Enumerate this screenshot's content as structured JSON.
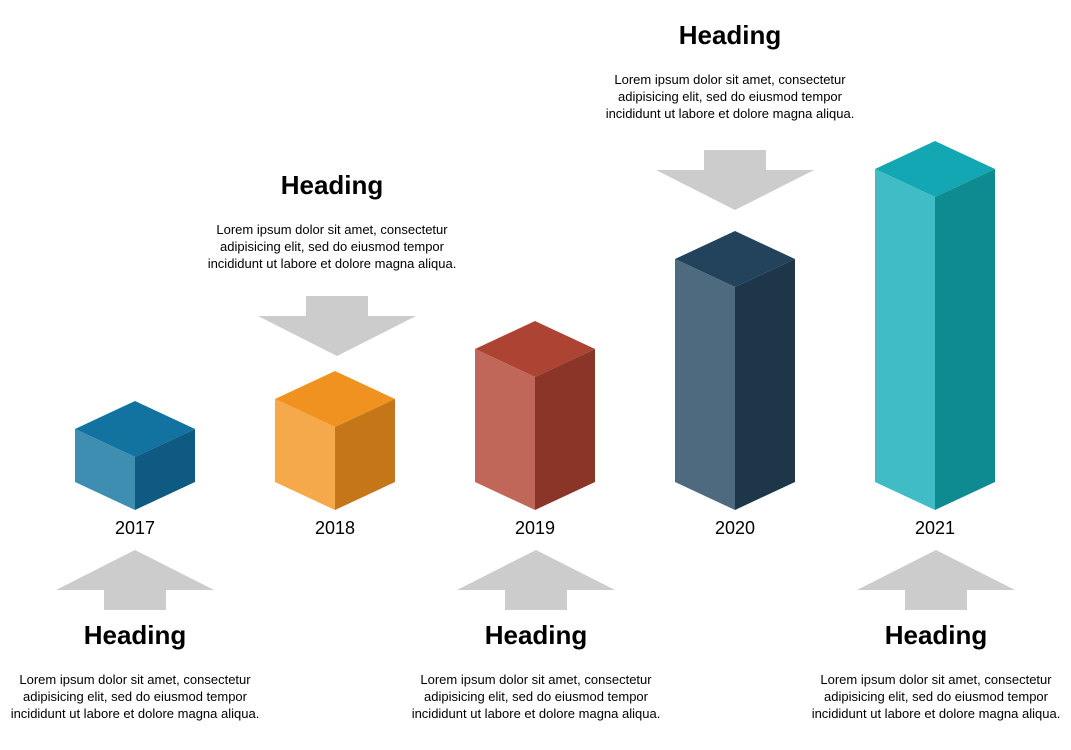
{
  "colors": {
    "arrow": "#cccccc"
  },
  "milestones": [
    {
      "year": "2017",
      "heading": "Heading",
      "text": "Lorem ipsum dolor sit amet, consectetur adipisicing elit, sed do eiusmod tempor incididunt ut labore et dolore magna aliqua.",
      "colors": {
        "top": "#1273a0",
        "left": "#3e8eb2",
        "right": "#0e5a82"
      }
    },
    {
      "year": "2018",
      "heading": "Heading",
      "text": "Lorem ipsum dolor sit amet, consectetur adipisicing elit, sed do eiusmod tempor incididunt ut labore et dolore magna aliqua.",
      "colors": {
        "top": "#f0921f",
        "left": "#f5a94a",
        "right": "#c57619"
      }
    },
    {
      "year": "2019",
      "heading": "Heading",
      "text": "Lorem ipsum dolor sit amet, consectetur adipisicing elit, sed do eiusmod tempor incididunt ut labore et dolore magna aliqua.",
      "colors": {
        "top": "#ac4333",
        "left": "#c0675a",
        "right": "#8b3428"
      }
    },
    {
      "year": "2020",
      "heading": "Heading",
      "text": "Lorem ipsum dolor sit amet, consectetur adipisicing elit, sed do eiusmod tempor incididunt ut labore et dolore magna aliqua.",
      "colors": {
        "top": "#22435b",
        "left": "#4d6a7f",
        "right": "#1d364a"
      }
    },
    {
      "year": "2021",
      "heading": "Heading",
      "text": "Lorem ipsum dolor sit amet, consectetur adipisicing elit, sed do eiusmod tempor incididunt ut labore et dolore magna aliqua.",
      "colors": {
        "top": "#13a7b3",
        "left": "#3fbcc5",
        "right": "#0e8b90"
      }
    }
  ]
}
